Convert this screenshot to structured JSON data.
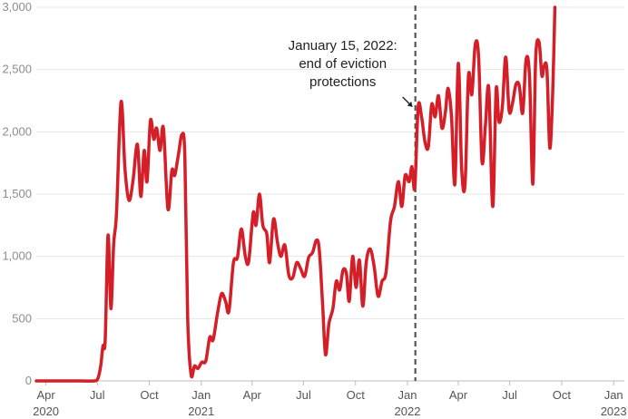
{
  "chart_data": {
    "type": "line",
    "title": "",
    "xlabel": "",
    "ylabel": "",
    "ylim": [
      0,
      3000
    ],
    "xlim": [
      "2020-03-15",
      "2023-01-20"
    ],
    "grid": true,
    "legend": "none",
    "line_color": "#d41f28",
    "y_ticks": [
      {
        "value": 0,
        "label": "0"
      },
      {
        "value": 500,
        "label": "500"
      },
      {
        "value": 1000,
        "label": "1,000"
      },
      {
        "value": 1500,
        "label": "1,500"
      },
      {
        "value": 2000,
        "label": "2,000"
      },
      {
        "value": 2500,
        "label": "2,500"
      },
      {
        "value": 3000,
        "label": "3,000"
      }
    ],
    "x_ticks": [
      {
        "date": "2020-04-01",
        "label": "Apr",
        "year": "2020"
      },
      {
        "date": "2020-07-01",
        "label": "Jul",
        "year": ""
      },
      {
        "date": "2020-10-01",
        "label": "Oct",
        "year": ""
      },
      {
        "date": "2021-01-01",
        "label": "Jan",
        "year": "2021"
      },
      {
        "date": "2021-04-01",
        "label": "Apr",
        "year": ""
      },
      {
        "date": "2021-07-01",
        "label": "Jul",
        "year": ""
      },
      {
        "date": "2021-10-01",
        "label": "Oct",
        "year": ""
      },
      {
        "date": "2022-01-01",
        "label": "Jan",
        "year": "2022"
      },
      {
        "date": "2022-04-01",
        "label": "Apr",
        "year": ""
      },
      {
        "date": "2022-07-01",
        "label": "Jul",
        "year": ""
      },
      {
        "date": "2022-10-01",
        "label": "Oct",
        "year": ""
      },
      {
        "date": "2023-01-01",
        "label": "Jan",
        "year": "2023"
      }
    ],
    "annotation": {
      "date": "2022-01-15",
      "lines": [
        "January 15, 2022:",
        "end of eviction",
        "protections"
      ]
    },
    "series": [
      {
        "values": [
          [
            "2020-03-15",
            0
          ],
          [
            "2020-04-05",
            0
          ],
          [
            "2020-05-01",
            0
          ],
          [
            "2020-06-01",
            0
          ],
          [
            "2020-06-25",
            0
          ],
          [
            "2020-07-02",
            20
          ],
          [
            "2020-07-07",
            120
          ],
          [
            "2020-07-11",
            280
          ],
          [
            "2020-07-15",
            330
          ],
          [
            "2020-07-20",
            1170
          ],
          [
            "2020-07-25",
            580
          ],
          [
            "2020-07-30",
            1100
          ],
          [
            "2020-08-04",
            1350
          ],
          [
            "2020-08-12",
            2240
          ],
          [
            "2020-08-19",
            1700
          ],
          [
            "2020-08-26",
            1450
          ],
          [
            "2020-09-02",
            1600
          ],
          [
            "2020-09-10",
            1900
          ],
          [
            "2020-09-16",
            1480
          ],
          [
            "2020-09-22",
            1850
          ],
          [
            "2020-09-27",
            1600
          ],
          [
            "2020-10-03",
            2090
          ],
          [
            "2020-10-09",
            1940
          ],
          [
            "2020-10-14",
            2030
          ],
          [
            "2020-10-20",
            1850
          ],
          [
            "2020-10-26",
            2030
          ],
          [
            "2020-11-03",
            1380
          ],
          [
            "2020-11-10",
            1690
          ],
          [
            "2020-11-15",
            1650
          ],
          [
            "2020-11-21",
            1800
          ],
          [
            "2020-11-28",
            1980
          ],
          [
            "2020-12-03",
            1800
          ],
          [
            "2020-12-08",
            500
          ],
          [
            "2020-12-14",
            50
          ],
          [
            "2020-12-20",
            120
          ],
          [
            "2020-12-26",
            100
          ],
          [
            "2021-01-02",
            150
          ],
          [
            "2021-01-09",
            160
          ],
          [
            "2021-01-16",
            350
          ],
          [
            "2021-01-22",
            330
          ],
          [
            "2021-01-30",
            550
          ],
          [
            "2021-02-06",
            700
          ],
          [
            "2021-02-13",
            640
          ],
          [
            "2021-02-19",
            560
          ],
          [
            "2021-02-27",
            950
          ],
          [
            "2021-03-06",
            990
          ],
          [
            "2021-03-13",
            1220
          ],
          [
            "2021-03-20",
            1000
          ],
          [
            "2021-03-26",
            960
          ],
          [
            "2021-04-03",
            1350
          ],
          [
            "2021-04-08",
            1250
          ],
          [
            "2021-04-14",
            1500
          ],
          [
            "2021-04-20",
            1250
          ],
          [
            "2021-04-27",
            1180
          ],
          [
            "2021-05-02",
            950
          ],
          [
            "2021-05-09",
            1300
          ],
          [
            "2021-05-16",
            1110
          ],
          [
            "2021-05-22",
            1000
          ],
          [
            "2021-05-29",
            1090
          ],
          [
            "2021-06-05",
            850
          ],
          [
            "2021-06-12",
            830
          ],
          [
            "2021-06-19",
            950
          ],
          [
            "2021-06-26",
            900
          ],
          [
            "2021-07-03",
            840
          ],
          [
            "2021-07-10",
            990
          ],
          [
            "2021-07-17",
            1030
          ],
          [
            "2021-07-24",
            1130
          ],
          [
            "2021-07-29",
            1050
          ],
          [
            "2021-08-04",
            600
          ],
          [
            "2021-08-09",
            210
          ],
          [
            "2021-08-15",
            460
          ],
          [
            "2021-08-22",
            580
          ],
          [
            "2021-08-28",
            800
          ],
          [
            "2021-09-03",
            730
          ],
          [
            "2021-09-09",
            890
          ],
          [
            "2021-09-15",
            860
          ],
          [
            "2021-09-20",
            640
          ],
          [
            "2021-09-26",
            1000
          ],
          [
            "2021-10-02",
            750
          ],
          [
            "2021-10-08",
            970
          ],
          [
            "2021-10-14",
            600
          ],
          [
            "2021-10-20",
            950
          ],
          [
            "2021-10-27",
            1060
          ],
          [
            "2021-11-03",
            920
          ],
          [
            "2021-11-10",
            680
          ],
          [
            "2021-11-17",
            800
          ],
          [
            "2021-11-24",
            870
          ],
          [
            "2021-12-02",
            1280
          ],
          [
            "2021-12-09",
            1400
          ],
          [
            "2021-12-16",
            1600
          ],
          [
            "2021-12-22",
            1400
          ],
          [
            "2021-12-28",
            1650
          ],
          [
            "2022-01-04",
            1600
          ],
          [
            "2022-01-09",
            1720
          ],
          [
            "2022-01-14",
            1550
          ],
          [
            "2022-01-20",
            2200
          ],
          [
            "2022-01-26",
            2120
          ],
          [
            "2022-02-01",
            1920
          ],
          [
            "2022-02-07",
            1880
          ],
          [
            "2022-02-13",
            2220
          ],
          [
            "2022-02-19",
            2120
          ],
          [
            "2022-02-25",
            2290
          ],
          [
            "2022-03-03",
            2030
          ],
          [
            "2022-03-09",
            2150
          ],
          [
            "2022-03-14",
            2350
          ],
          [
            "2022-03-20",
            2120
          ],
          [
            "2022-03-26",
            1580
          ],
          [
            "2022-04-01",
            2550
          ],
          [
            "2022-04-07",
            1700
          ],
          [
            "2022-04-13",
            1580
          ],
          [
            "2022-04-19",
            2450
          ],
          [
            "2022-04-25",
            2300
          ],
          [
            "2022-05-01",
            2700
          ],
          [
            "2022-05-07",
            2600
          ],
          [
            "2022-05-13",
            1760
          ],
          [
            "2022-05-19",
            2050
          ],
          [
            "2022-05-25",
            2350
          ],
          [
            "2022-06-01",
            1400
          ],
          [
            "2022-06-07",
            2340
          ],
          [
            "2022-06-12",
            2080
          ],
          [
            "2022-06-18",
            2200
          ],
          [
            "2022-06-24",
            2600
          ],
          [
            "2022-06-30",
            2170
          ],
          [
            "2022-07-06",
            2230
          ],
          [
            "2022-07-12",
            2380
          ],
          [
            "2022-07-18",
            2370
          ],
          [
            "2022-07-24",
            2150
          ],
          [
            "2022-07-30",
            2580
          ],
          [
            "2022-08-05",
            2450
          ],
          [
            "2022-08-11",
            1580
          ],
          [
            "2022-08-16",
            2590
          ],
          [
            "2022-08-22",
            2720
          ],
          [
            "2022-08-27",
            2450
          ],
          [
            "2022-08-31",
            2530
          ],
          [
            "2022-09-05",
            2490
          ],
          [
            "2022-09-10",
            1870
          ],
          [
            "2022-09-15",
            2300
          ],
          [
            "2022-09-19",
            3000
          ]
        ]
      }
    ]
  }
}
